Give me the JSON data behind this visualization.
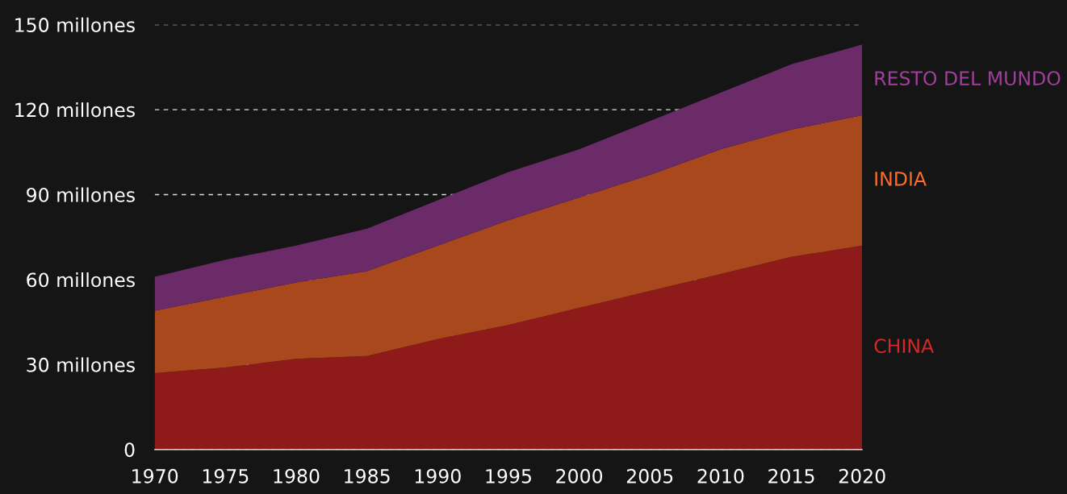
{
  "chart_data": {
    "type": "area",
    "stacked": true,
    "x": [
      1970,
      1975,
      1980,
      1985,
      1990,
      1995,
      2000,
      2005,
      2010,
      2015,
      2020
    ],
    "series": [
      {
        "name": "CHINA",
        "color": "#8e1a1a",
        "values": [
          27,
          29,
          32,
          33,
          39,
          44,
          50,
          56,
          62,
          68,
          72
        ]
      },
      {
        "name": "INDIA",
        "color": "#a9481c",
        "values": [
          22,
          25,
          27,
          30,
          33,
          37,
          39,
          41,
          44,
          45,
          46
        ]
      },
      {
        "name": "RESTO DEL MUNDO",
        "color": "#6b2a68",
        "values": [
          12,
          13,
          13,
          15,
          16,
          17,
          17,
          19,
          20,
          23,
          25
        ]
      }
    ],
    "xlim": [
      1970,
      2020
    ],
    "xticks": [
      1970,
      1975,
      1980,
      1985,
      1990,
      1995,
      2000,
      2005,
      2010,
      2015,
      2020
    ],
    "ylim": [
      0,
      150
    ],
    "yticks": [
      0,
      {
        "value": 30,
        "label": "30 millones"
      },
      {
        "value": 60,
        "label": "60 millones"
      },
      {
        "value": 90,
        "label": "90 millones"
      },
      {
        "value": 120,
        "label": "120 millones"
      },
      {
        "value": 150,
        "label": "150 millones"
      }
    ],
    "grid": "y",
    "legend": false
  }
}
